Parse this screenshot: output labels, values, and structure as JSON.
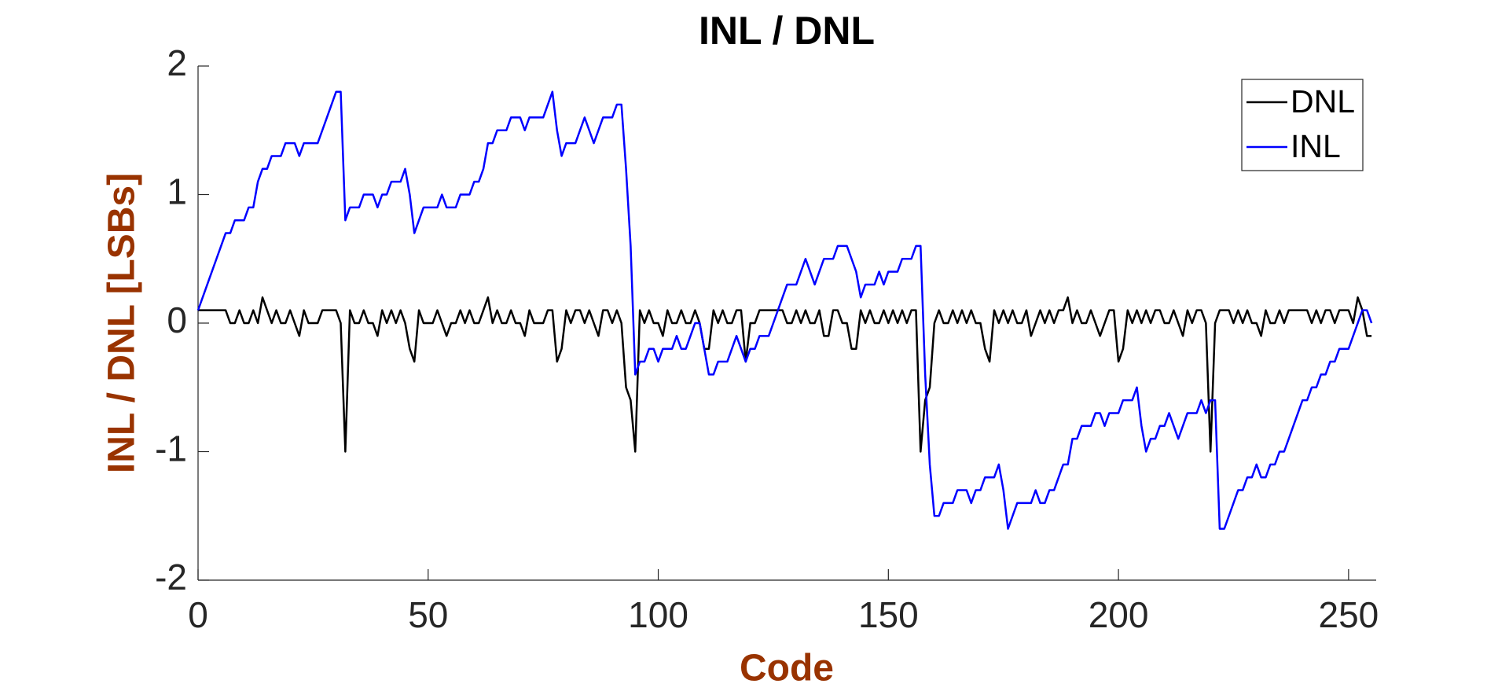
{
  "chart_data": {
    "type": "line",
    "title": "INL / DNL",
    "x_label": "Code",
    "y_label": "INL / DNL [LSBs]",
    "x": [
      0,
      1,
      2,
      3,
      4,
      5,
      6,
      7,
      8,
      9,
      10,
      11,
      12,
      13,
      14,
      15,
      16,
      17,
      18,
      19,
      20,
      21,
      22,
      23,
      24,
      25,
      26,
      27,
      28,
      29,
      30,
      31,
      32,
      33,
      34,
      35,
      36,
      37,
      38,
      39,
      40,
      41,
      42,
      43,
      44,
      45,
      46,
      47,
      48,
      49,
      50,
      51,
      52,
      53,
      54,
      55,
      56,
      57,
      58,
      59,
      60,
      61,
      62,
      63,
      64,
      65,
      66,
      67,
      68,
      69,
      70,
      71,
      72,
      73,
      74,
      75,
      76,
      77,
      78,
      79,
      80,
      81,
      82,
      83,
      84,
      85,
      86,
      87,
      88,
      89,
      90,
      91,
      92,
      93,
      94,
      95,
      96,
      97,
      98,
      99,
      100,
      101,
      102,
      103,
      104,
      105,
      106,
      107,
      108,
      109,
      110,
      111,
      112,
      113,
      114,
      115,
      116,
      117,
      118,
      119,
      120,
      121,
      122,
      123,
      124,
      125,
      126,
      127,
      128,
      129,
      130,
      131,
      132,
      133,
      134,
      135,
      136,
      137,
      138,
      139,
      140,
      141,
      142,
      143,
      144,
      145,
      146,
      147,
      148,
      149,
      150,
      151,
      152,
      153,
      154,
      155,
      156,
      157,
      158,
      159,
      160,
      161,
      162,
      163,
      164,
      165,
      166,
      167,
      168,
      169,
      170,
      171,
      172,
      173,
      174,
      175,
      176,
      177,
      178,
      179,
      180,
      181,
      182,
      183,
      184,
      185,
      186,
      187,
      188,
      189,
      190,
      191,
      192,
      193,
      194,
      195,
      196,
      197,
      198,
      199,
      200,
      201,
      202,
      203,
      204,
      205,
      206,
      207,
      208,
      209,
      210,
      211,
      212,
      213,
      214,
      215,
      216,
      217,
      218,
      219,
      220,
      221,
      222,
      223,
      224,
      225,
      226,
      227,
      228,
      229,
      230,
      231,
      232,
      233,
      234,
      235,
      236,
      237,
      238,
      239,
      240,
      241,
      242,
      243,
      244,
      245,
      246,
      247,
      248,
      249,
      250,
      251,
      252,
      253,
      254,
      255
    ],
    "series": [
      {
        "name": "DNL",
        "color": "#000000",
        "values": [
          0.1,
          0.1,
          0.1,
          0.1,
          0.1,
          0.1,
          0.1,
          0,
          0,
          0.1,
          0,
          0,
          0.1,
          0,
          0.2,
          0.1,
          0,
          0.1,
          0,
          0,
          0.1,
          0,
          -0.1,
          0.1,
          0,
          0,
          0,
          0.1,
          0.1,
          0.1,
          0.1,
          0,
          -1.0,
          0.1,
          0,
          0,
          0.1,
          0,
          0,
          -0.1,
          0.1,
          0,
          0.1,
          0,
          0.1,
          0,
          -0.2,
          -0.3,
          0.1,
          0,
          0,
          0,
          0.1,
          0,
          -0.1,
          0,
          0,
          0.1,
          0,
          0.1,
          0,
          0,
          0.1,
          0.2,
          0,
          0.1,
          0,
          0,
          0.1,
          0,
          0,
          -0.1,
          0.1,
          0,
          0,
          0,
          0.1,
          0.1,
          -0.3,
          -0.2,
          0.1,
          0,
          0.1,
          0.1,
          0,
          0.1,
          0,
          -0.1,
          0.1,
          0.1,
          0,
          0.1,
          0,
          -0.5,
          -0.6,
          -1.0,
          0.1,
          0,
          0.1,
          0,
          0,
          -0.1,
          0.1,
          0,
          0,
          0.1,
          0,
          0,
          0.1,
          0,
          -0.2,
          -0.2,
          0.1,
          0,
          0.1,
          0,
          0,
          0.1,
          0.1,
          -0.3,
          0,
          0,
          0.1,
          0.1,
          0.1,
          0.1,
          0.1,
          0.1,
          0,
          0,
          0.1,
          0,
          0.1,
          0,
          0,
          0.1,
          -0.1,
          -0.1,
          0.1,
          0.1,
          0,
          0,
          -0.2,
          -0.2,
          0.1,
          0,
          0.1,
          0,
          0,
          0.1,
          0,
          0.1,
          0,
          0.1,
          0,
          0.1,
          0.1,
          -1.0,
          -0.6,
          -0.5,
          0,
          0.1,
          0,
          0,
          0.1,
          0,
          0.1,
          0,
          0.1,
          0,
          0,
          -0.2,
          -0.3,
          0.1,
          0,
          0.1,
          0,
          0.1,
          0,
          0,
          0.1,
          -0.1,
          0,
          0.1,
          0,
          0.1,
          0,
          0.1,
          0.1,
          0.2,
          0,
          0.1,
          0,
          0,
          0.1,
          0,
          -0.1,
          0,
          0.1,
          0.1,
          -0.3,
          -0.2,
          0.1,
          0,
          0.1,
          0,
          0.1,
          0,
          0.1,
          0.1,
          0,
          0,
          0.1,
          0,
          -0.1,
          0.1,
          0,
          0.1,
          0.1,
          0,
          -1.0,
          0,
          0.1,
          0.1,
          0.1,
          0,
          0.1,
          0,
          0.1,
          0,
          0,
          -0.1,
          0.1,
          0,
          0,
          0.1,
          0,
          0.1,
          0.1,
          0.1,
          0.1,
          0.1,
          0,
          0.1,
          0,
          0.1,
          0.1,
          0,
          0.1,
          0.1,
          0.1,
          0,
          0.2,
          0.1,
          -0.1,
          -0.1
        ]
      },
      {
        "name": "INL",
        "color": "#0000ff",
        "values": [
          0.1,
          0.2,
          0.3,
          0.4,
          0.5,
          0.6,
          0.7,
          0.7,
          0.8,
          0.8,
          0.8,
          0.9,
          0.9,
          1.1,
          1.2,
          1.2,
          1.3,
          1.3,
          1.3,
          1.4,
          1.4,
          1.4,
          1.3,
          1.4,
          1.4,
          1.4,
          1.4,
          1.5,
          1.6,
          1.7,
          1.8,
          1.8,
          0.8,
          0.9,
          0.9,
          0.9,
          1.0,
          1.0,
          1.0,
          0.9,
          1.0,
          1.0,
          1.1,
          1.1,
          1.1,
          1.2,
          1.0,
          0.7,
          0.8,
          0.9,
          0.9,
          0.9,
          0.9,
          1.0,
          0.9,
          0.9,
          0.9,
          1.0,
          1.0,
          1.0,
          1.1,
          1.1,
          1.2,
          1.4,
          1.4,
          1.5,
          1.5,
          1.5,
          1.6,
          1.6,
          1.6,
          1.5,
          1.6,
          1.6,
          1.6,
          1.6,
          1.7,
          1.8,
          1.5,
          1.3,
          1.4,
          1.4,
          1.4,
          1.5,
          1.6,
          1.5,
          1.4,
          1.5,
          1.6,
          1.6,
          1.6,
          1.7,
          1.7,
          1.2,
          0.6,
          -0.4,
          -0.3,
          -0.3,
          -0.2,
          -0.2,
          -0.3,
          -0.2,
          -0.2,
          -0.2,
          -0.1,
          -0.2,
          -0.2,
          -0.1,
          0.0,
          0.0,
          -0.2,
          -0.4,
          -0.4,
          -0.3,
          -0.3,
          -0.3,
          -0.2,
          -0.1,
          -0.2,
          -0.3,
          -0.2,
          -0.2,
          -0.1,
          -0.1,
          -0.1,
          0.0,
          0.1,
          0.2,
          0.3,
          0.3,
          0.3,
          0.4,
          0.5,
          0.4,
          0.3,
          0.4,
          0.5,
          0.5,
          0.5,
          0.6,
          0.6,
          0.6,
          0.5,
          0.4,
          0.2,
          0.3,
          0.3,
          0.3,
          0.4,
          0.3,
          0.4,
          0.4,
          0.4,
          0.5,
          0.5,
          0.5,
          0.6,
          0.6,
          -0.4,
          -1.1,
          -1.5,
          -1.5,
          -1.4,
          -1.4,
          -1.4,
          -1.3,
          -1.3,
          -1.3,
          -1.4,
          -1.3,
          -1.3,
          -1.2,
          -1.2,
          -1.2,
          -1.1,
          -1.3,
          -1.6,
          -1.5,
          -1.4,
          -1.4,
          -1.4,
          -1.4,
          -1.3,
          -1.4,
          -1.4,
          -1.3,
          -1.3,
          -1.2,
          -1.1,
          -1.1,
          -0.9,
          -0.9,
          -0.8,
          -0.8,
          -0.8,
          -0.7,
          -0.7,
          -0.8,
          -0.7,
          -0.7,
          -0.7,
          -0.6,
          -0.6,
          -0.6,
          -0.5,
          -0.8,
          -1.0,
          -0.9,
          -0.9,
          -0.8,
          -0.8,
          -0.7,
          -0.8,
          -0.9,
          -0.8,
          -0.7,
          -0.7,
          -0.7,
          -0.6,
          -0.7,
          -0.6,
          -0.6,
          -1.6,
          -1.6,
          -1.5,
          -1.4,
          -1.3,
          -1.3,
          -1.2,
          -1.2,
          -1.1,
          -1.2,
          -1.2,
          -1.1,
          -1.1,
          -1.0,
          -1.0,
          -0.9,
          -0.8,
          -0.7,
          -0.6,
          -0.6,
          -0.5,
          -0.5,
          -0.4,
          -0.4,
          -0.3,
          -0.3,
          -0.2,
          -0.2,
          -0.2,
          -0.1,
          0.0,
          0.1,
          0.1,
          0.0
        ]
      }
    ],
    "xlim": [
      0,
      256
    ],
    "ylim": [
      -2,
      2
    ],
    "xticks": [
      0,
      50,
      100,
      150,
      200,
      250
    ],
    "yticks": [
      -2,
      -1,
      0,
      1,
      2
    ],
    "grid": false,
    "legend": "upper right",
    "label_color": "#993300"
  }
}
